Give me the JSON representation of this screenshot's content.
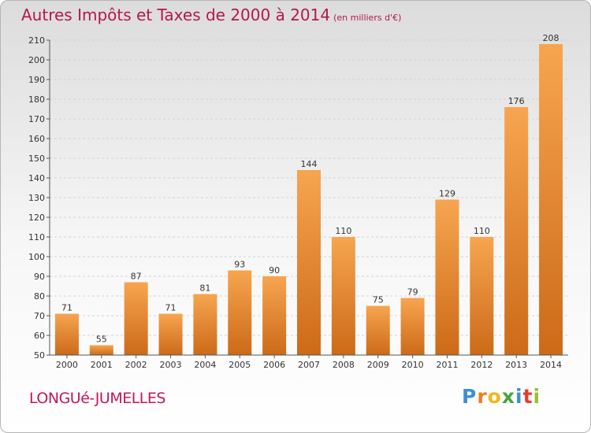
{
  "chart_data": {
    "type": "bar",
    "title": "Autres Impôts et Taxes de 2000 à 2014",
    "subtitle": "(en milliers d'€)",
    "categories": [
      "2000",
      "2001",
      "2002",
      "2003",
      "2004",
      "2005",
      "2006",
      "2007",
      "2008",
      "2009",
      "2010",
      "2011",
      "2012",
      "2013",
      "2014"
    ],
    "values": [
      71,
      55,
      87,
      71,
      81,
      93,
      90,
      144,
      110,
      75,
      79,
      129,
      110,
      176,
      208
    ],
    "ylim": [
      50,
      210
    ],
    "yticks": [
      50,
      60,
      70,
      80,
      90,
      100,
      110,
      120,
      130,
      140,
      150,
      160,
      170,
      180,
      190,
      200,
      210
    ],
    "grid": true,
    "bar_color_top": "#f7a550",
    "bar_color_bottom": "#cc6a18"
  },
  "commune": "LONGUé-JUMELLES",
  "logo": {
    "letters": [
      "P",
      "r",
      "o",
      "x",
      "i",
      "t",
      "i"
    ],
    "colors": [
      "#3d8fd6",
      "#ee7d1a",
      "#f2b51e",
      "#46a53b",
      "#3d8fd6",
      "#e53c2e",
      "#9bbf2c"
    ]
  }
}
